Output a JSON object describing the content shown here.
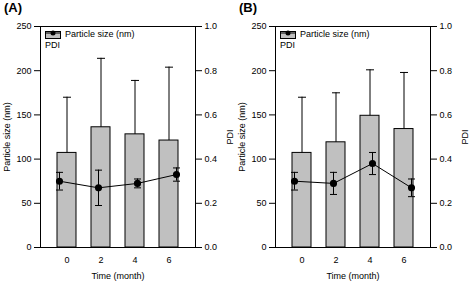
{
  "chart_data": [
    {
      "type": "bar",
      "title": "(A)",
      "x_label": "Time (month)",
      "categories": [
        "0",
        "2",
        "4",
        "6"
      ],
      "series": [
        {
          "name": "Particle size (nm)",
          "type": "bar",
          "color": "#c0c0c0",
          "values": [
            107,
            136,
            128,
            121
          ],
          "errors": [
            63,
            78,
            61,
            83
          ]
        },
        {
          "name": "PDI",
          "type": "line",
          "axis": "y2",
          "color": "#000000",
          "marker": "circle",
          "values": [
            0.3,
            0.27,
            0.29,
            0.33
          ],
          "errors": [
            0.04,
            0.08,
            0.02,
            0.03
          ]
        }
      ],
      "y_label": "Particle size (nm)",
      "ylim": [
        0,
        250
      ],
      "yticks": [
        0,
        50,
        100,
        150,
        200,
        250
      ],
      "y2_label": "PDI",
      "y2lim": [
        0,
        1
      ],
      "y2ticks": [
        {
          "value": 0,
          "label": "0.0"
        },
        {
          "value": 0.2,
          "label": "0.2"
        },
        {
          "value": 0.4,
          "label": "0.4"
        },
        {
          "value": 0.6,
          "label": "0.6"
        },
        {
          "value": 0.8,
          "label": "0.8"
        },
        {
          "value": 1,
          "label": "1.0"
        }
      ],
      "legend": "upper left"
    },
    {
      "type": "bar",
      "title": "(B)",
      "x_label": "Time (month)",
      "categories": [
        "0",
        "2",
        "4",
        "6"
      ],
      "series": [
        {
          "name": "Particle size (nm)",
          "type": "bar",
          "color": "#c0c0c0",
          "values": [
            107,
            119,
            149,
            134
          ],
          "errors": [
            63,
            56,
            52,
            64
          ]
        },
        {
          "name": "PDI",
          "type": "line",
          "axis": "y2",
          "color": "#000000",
          "marker": "circle",
          "values": [
            0.3,
            0.29,
            0.38,
            0.27
          ],
          "errors": [
            0.04,
            0.05,
            0.05,
            0.04
          ]
        }
      ],
      "y_label": "Particle size (nm)",
      "ylim": [
        0,
        250
      ],
      "yticks": [
        0,
        50,
        100,
        150,
        200,
        250
      ],
      "y2_label": "PDI",
      "y2lim": [
        0,
        1
      ],
      "y2ticks": [
        {
          "value": 0,
          "label": "0.0"
        },
        {
          "value": 0.2,
          "label": "0.2"
        },
        {
          "value": 0.4,
          "label": "0.4"
        },
        {
          "value": 0.6,
          "label": "0.6"
        },
        {
          "value": 0.8,
          "label": "0.8"
        },
        {
          "value": 1,
          "label": "1.0"
        }
      ],
      "legend": "upper left"
    }
  ]
}
